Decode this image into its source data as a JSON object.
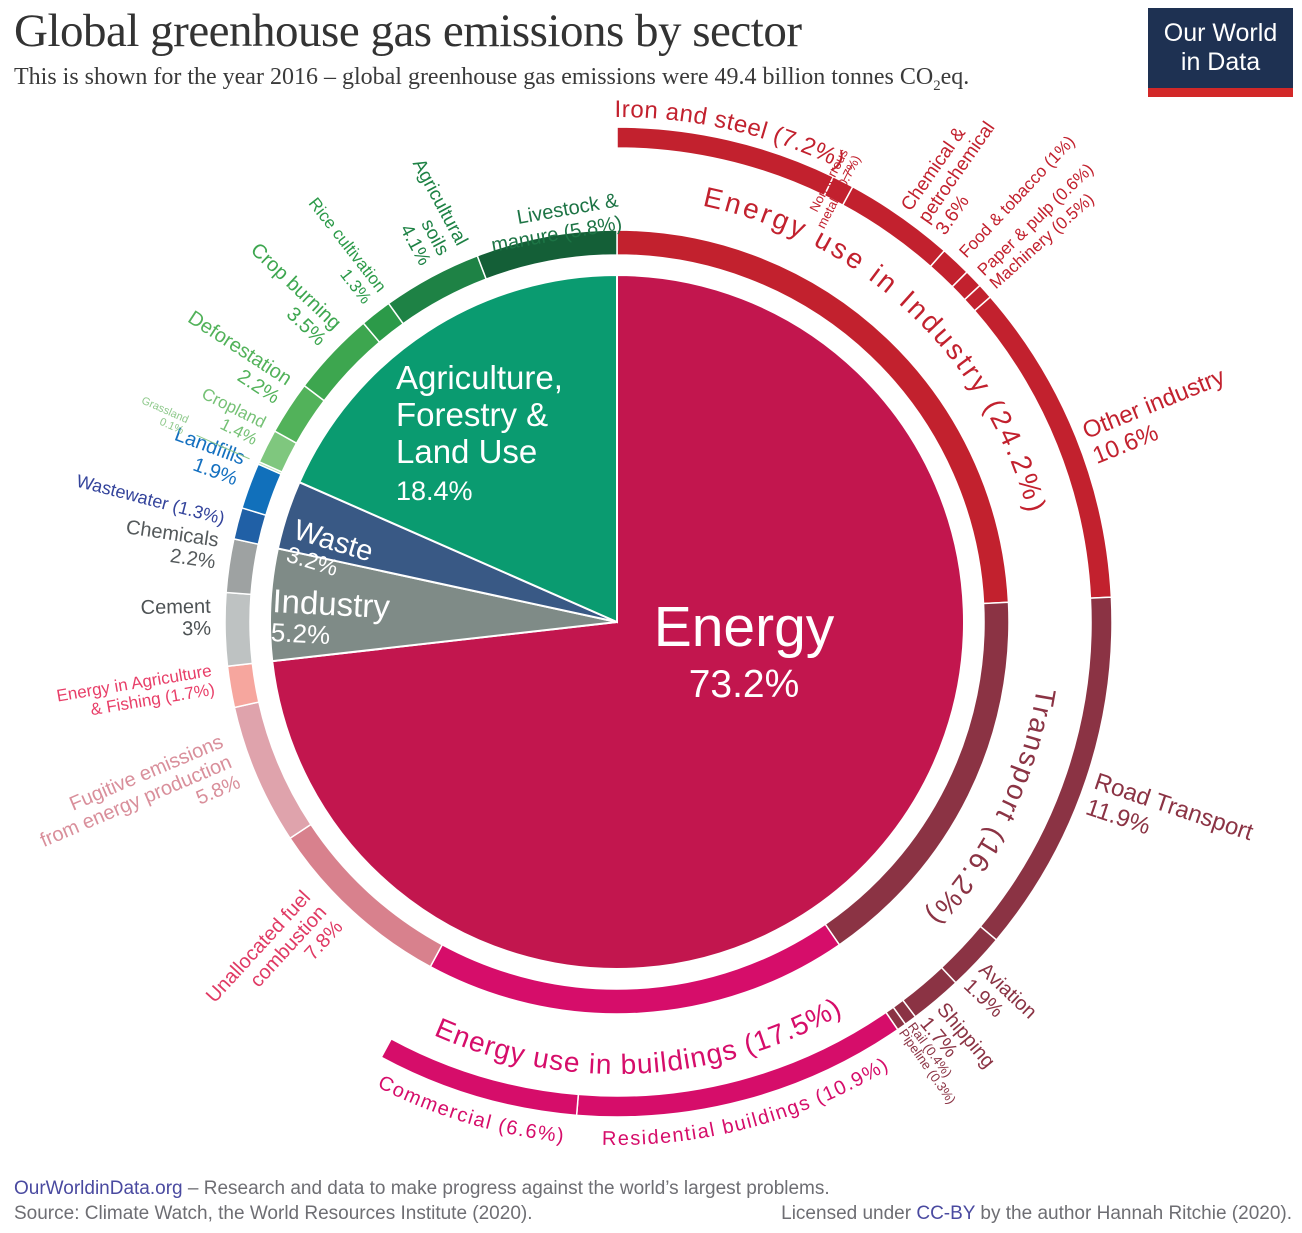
{
  "header": {
    "title": "Global greenhouse gas emissions by sector",
    "subtitle_pre": "This is shown for the year 2016 – global greenhouse gas emissions were 49.4 billion tonnes CO",
    "subtitle_sub": "2",
    "subtitle_post": "eq.",
    "logo_line1": "Our World",
    "logo_line2": "in Data"
  },
  "chart_data": {
    "type": "sunburst",
    "title": "Global greenhouse gas emissions by sector",
    "year": "2016",
    "total": "49.4 billion tonnes CO2eq",
    "inner": [
      {
        "id": "energy",
        "label": "Energy",
        "pct": "73.2%",
        "value": 73.2,
        "color": "#c2164e",
        "label_color": "#ffffff"
      },
      {
        "id": "industry",
        "label": "Industry",
        "pct": "5.2%",
        "value": 5.2,
        "color": "#7f8b87",
        "label_color": "#ffffff"
      },
      {
        "id": "waste",
        "label": "Waste",
        "pct": "3.2%",
        "value": 3.2,
        "color": "#395985",
        "label_color": "#ffffff"
      },
      {
        "id": "afolu",
        "label": "Agriculture, Forestry & Land Use",
        "lines": [
          "Agriculture,",
          "Forestry &",
          "Land Use"
        ],
        "pct": "18.4%",
        "value": 18.4,
        "color": "#0a9b70",
        "label_color": "#ffffff"
      }
    ],
    "middle": [
      {
        "id": "energy-industry",
        "label": "Energy use in Industry (24.2%)",
        "value": 24.2,
        "color": "#c2212e",
        "label_color": "#c2212e"
      },
      {
        "id": "transport",
        "label": "Transport (16.2%)",
        "value": 16.2,
        "color": "#8b3344",
        "label_color": "#8b3344"
      },
      {
        "id": "buildings",
        "label": "Energy use in buildings (17.5%)",
        "value": 17.5,
        "color": "#d60d6a",
        "label_color": "#d60d6a"
      },
      {
        "id": "unallocated",
        "label": "Unallocated fuel combustion 7.8%",
        "lines": [
          "Unallocated fuel",
          "combustion",
          "7.8%"
        ],
        "value": 7.8,
        "color": "#d8818d",
        "label_color": "#e03a64"
      },
      {
        "id": "fugitive",
        "label": "Fugitive emissions from energy production 5.8%",
        "lines": [
          "Fugitive emissions",
          "from energy production",
          "5.8%"
        ],
        "value": 5.8,
        "color": "#dfa3ac",
        "label_color": "#d98f9b"
      },
      {
        "id": "energy-ag-fishing",
        "label": "Energy in Agriculture & Fishing (1.7%)",
        "lines": [
          "Energy in Agriculture",
          "& Fishing (1.7%)"
        ],
        "value": 1.7,
        "color": "#f6a69e",
        "label_color": "#e83e68"
      },
      {
        "id": "cement",
        "label": "Cement 3%",
        "lines": [
          "Cement",
          "3%"
        ],
        "value": 3.0,
        "color": "#bec2c2",
        "label_color": "#4d5254"
      },
      {
        "id": "chemicals",
        "label": "Chemicals 2.2%",
        "lines": [
          "Chemicals",
          "2.2%"
        ],
        "value": 2.2,
        "color": "#9ea2a2",
        "label_color": "#54595b"
      },
      {
        "id": "wastewater",
        "label": "Wastewater (1.3%)",
        "lines": [
          "Wastewater (1.3%)"
        ],
        "value": 1.3,
        "color": "#2060a6",
        "label_color": "#33439b"
      },
      {
        "id": "landfills",
        "label": "Landfills 1.9%",
        "lines": [
          "Landfills",
          "1.9%"
        ],
        "value": 1.9,
        "color": "#1170bb",
        "label_color": "#1470c0"
      },
      {
        "id": "grassland",
        "label": "Grassland 0.1%",
        "lines": [
          "Grassland",
          "0.1%"
        ],
        "value": 0.1,
        "color": "#b5ddb2",
        "label_color": "#8fc98c"
      },
      {
        "id": "cropland",
        "label": "Cropland 1.4%",
        "lines": [
          "Cropland",
          "1.4%"
        ],
        "value": 1.4,
        "color": "#7fc77e",
        "label_color": "#75c175"
      },
      {
        "id": "deforestation",
        "label": "Deforestation 2.2%",
        "lines": [
          "Deforestation",
          "2.2%"
        ],
        "value": 2.2,
        "color": "#52b25a",
        "label_color": "#52b25a"
      },
      {
        "id": "crop-burning",
        "label": "Crop burning 3.5%",
        "lines": [
          "Crop burning",
          "3.5%"
        ],
        "value": 3.5,
        "color": "#3da64f",
        "label_color": "#3da64f"
      },
      {
        "id": "rice",
        "label": "Rice cultivation 1.3%",
        "lines": [
          "Rice cultivation",
          "1.3%"
        ],
        "value": 1.3,
        "color": "#2c9a49",
        "label_color": "#2c9a49"
      },
      {
        "id": "ag-soils",
        "label": "Agricultural soils 4.1%",
        "lines": [
          "Agricultural",
          "soils",
          "4.1%"
        ],
        "value": 4.1,
        "color": "#1e8245",
        "label_color": "#1e8245"
      },
      {
        "id": "livestock",
        "label": "Livestock & manure (5.8%)",
        "lines": [
          "Livestock &",
          "manure (5.8%)"
        ],
        "value": 5.8,
        "color": "#145f37",
        "label_color": "#1d7445"
      }
    ],
    "outer": [
      {
        "id": "iron-steel",
        "label": "Iron and steel (7.2%)",
        "value": 7.2,
        "color": "#c2212e",
        "label_color": "#c2212e"
      },
      {
        "id": "non-ferrous",
        "label": "Non-ferrous metals (0.7%)",
        "lines": [
          "Non-ferrous",
          "metals (0.7%)"
        ],
        "value": 0.7,
        "color": "#c2212e",
        "label_color": "#c2212e"
      },
      {
        "id": "chem-petro",
        "label": "Chemical & petrochemical 3.6%",
        "lines": [
          "Chemical &",
          "petrochemical",
          "3.6%"
        ],
        "value": 3.6,
        "color": "#c2212e",
        "label_color": "#c2212e"
      },
      {
        "id": "food-tobacco",
        "label": "Food & tobacco (1%)",
        "lines": [
          "Food & tobacco (1%)"
        ],
        "value": 1.0,
        "color": "#c2212e",
        "label_color": "#c2212e"
      },
      {
        "id": "paper-pulp",
        "label": "Paper & pulp (0.6%)",
        "lines": [
          "Paper & pulp (0.6%)"
        ],
        "value": 0.6,
        "color": "#c2212e",
        "label_color": "#c2212e"
      },
      {
        "id": "machinery",
        "label": "Machinery (0.5%)",
        "lines": [
          "Machinery (0.5%)"
        ],
        "value": 0.5,
        "color": "#c2212e",
        "label_color": "#c2212e"
      },
      {
        "id": "other-industry",
        "label": "Other industry 10.6%",
        "lines": [
          "Other industry",
          "10.6%"
        ],
        "value": 10.6,
        "color": "#c2212e",
        "label_color": "#c2212e"
      },
      {
        "id": "road-transport",
        "label": "Road Transport 11.9%",
        "lines": [
          "Road Transport",
          "11.9%"
        ],
        "value": 11.9,
        "color": "#8b3344",
        "label_color": "#8b3344"
      },
      {
        "id": "aviation",
        "label": "Aviation 1.9%",
        "lines": [
          "Aviation",
          "1.9%"
        ],
        "value": 1.9,
        "color": "#8b3344",
        "label_color": "#8b3344"
      },
      {
        "id": "shipping",
        "label": "Shipping 1.7%",
        "lines": [
          "Shipping",
          "1.7%"
        ],
        "value": 1.7,
        "color": "#8b3344",
        "label_color": "#8b3344"
      },
      {
        "id": "rail",
        "label": "Rail (0.4%)",
        "lines": [
          "Rail (0.4%)"
        ],
        "value": 0.4,
        "color": "#8b3344",
        "label_color": "#8b3344"
      },
      {
        "id": "pipeline",
        "label": "Pipeline (0.3%)",
        "lines": [
          "Pipeline (0.3%)"
        ],
        "value": 0.3,
        "color": "#8b3344",
        "label_color": "#8b3344"
      },
      {
        "id": "residential",
        "label": "Residential buildings (10.9%)",
        "value": 10.9,
        "color": "#d60d6a",
        "label_color": "#d60d6a"
      },
      {
        "id": "commercial",
        "label": "Commercial (6.6%)",
        "value": 6.6,
        "color": "#d60d6a",
        "label_color": "#d60d6a"
      }
    ]
  },
  "footer": {
    "site": "OurWorldinData.org",
    "tagline": " – Research and data to make progress against the world’s largest problems.",
    "source": "Source: Climate Watch, the World Resources Institute (2020).",
    "license_pre": "Licensed under ",
    "license_link": "CC-BY",
    "license_post": " by the author Hannah Ritchie  (2020)."
  }
}
